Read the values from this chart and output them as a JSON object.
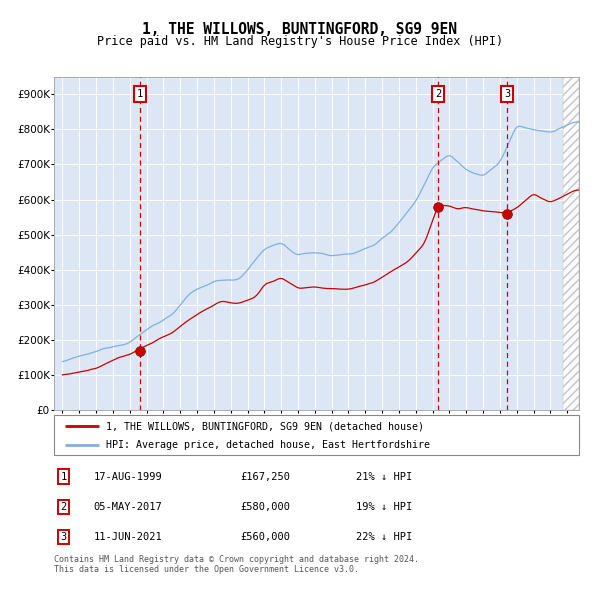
{
  "title": "1, THE WILLOWS, BUNTINGFORD, SG9 9EN",
  "subtitle": "Price paid vs. HM Land Registry's House Price Index (HPI)",
  "legend_line1": "1, THE WILLOWS, BUNTINGFORD, SG9 9EN (detached house)",
  "legend_line2": "HPI: Average price, detached house, East Hertfordshire",
  "table": [
    {
      "num": "1",
      "date": "17-AUG-1999",
      "price": "£167,250",
      "pct": "21% ↓ HPI"
    },
    {
      "num": "2",
      "date": "05-MAY-2017",
      "price": "£580,000",
      "pct": "19% ↓ HPI"
    },
    {
      "num": "3",
      "date": "11-JUN-2021",
      "price": "£560,000",
      "pct": "22% ↓ HPI"
    }
  ],
  "footnote1": "Contains HM Land Registry data © Crown copyright and database right 2024.",
  "footnote2": "This data is licensed under the Open Government Licence v3.0.",
  "plot_bg": "#dde6f5",
  "red_color": "#cc0000",
  "blue_color": "#7fb0e0",
  "grid_color": "#ffffff",
  "dashed_color": "#cc0000",
  "ylim": [
    0,
    950000
  ],
  "yticks": [
    0,
    100000,
    200000,
    300000,
    400000,
    500000,
    600000,
    700000,
    800000,
    900000
  ],
  "xlim_start": 1994.5,
  "xlim_end": 2025.7,
  "purchase1_x": 1999.62,
  "purchase1_y": 167250,
  "purchase2_x": 2017.34,
  "purchase2_y": 580000,
  "purchase3_x": 2021.44,
  "purchase3_y": 560000
}
